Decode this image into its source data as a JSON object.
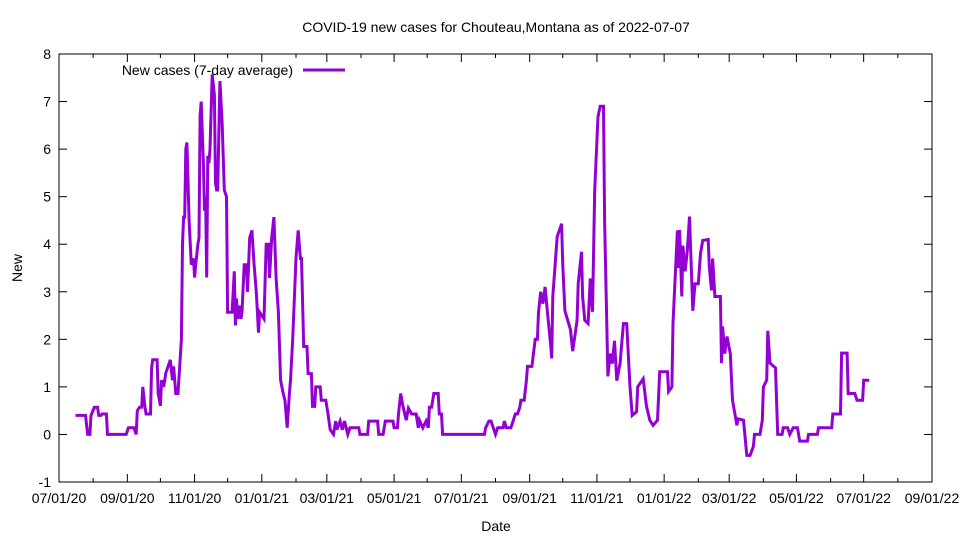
{
  "chart_data": {
    "type": "line",
    "title": "COVID-19 new cases for Chouteau,Montana as of 2022-07-07",
    "xlabel": "Date",
    "ylabel": "New",
    "x_units": "days since 07/01/20",
    "xlim": [
      0,
      792
    ],
    "ylim": [
      -1,
      8
    ],
    "yticks": [
      -1,
      0,
      1,
      2,
      3,
      4,
      5,
      6,
      7,
      8
    ],
    "xticks": [
      {
        "day": 0,
        "label": "07/01/20"
      },
      {
        "day": 62,
        "label": "09/01/20"
      },
      {
        "day": 123,
        "label": "11/01/20"
      },
      {
        "day": 184,
        "label": "01/01/21"
      },
      {
        "day": 243,
        "label": "03/01/21"
      },
      {
        "day": 304,
        "label": "05/01/21"
      },
      {
        "day": 365,
        "label": "07/01/21"
      },
      {
        "day": 427,
        "label": "09/01/21"
      },
      {
        "day": 488,
        "label": "11/01/21"
      },
      {
        "day": 549,
        "label": "01/01/22"
      },
      {
        "day": 608,
        "label": "03/01/22"
      },
      {
        "day": 669,
        "label": "05/01/22"
      },
      {
        "day": 730,
        "label": "07/01/22"
      },
      {
        "day": 792,
        "label": "09/01/22"
      }
    ],
    "minor_xticks": [
      31,
      92,
      153,
      215,
      274,
      334,
      396,
      457,
      518,
      580,
      639,
      700,
      761
    ],
    "grid": false,
    "legend": {
      "position": "top-left",
      "entries": [
        "New cases (7-day average)"
      ]
    },
    "series": [
      {
        "name": "New cases (7-day average)",
        "color": "#9400d3",
        "points": [
          [
            15,
            0.4
          ],
          [
            24,
            0.4
          ],
          [
            26,
            0
          ],
          [
            28,
            0
          ],
          [
            29,
            0.4
          ],
          [
            32,
            0.57
          ],
          [
            35,
            0.57
          ],
          [
            36,
            0.4
          ],
          [
            38,
            0.4
          ],
          [
            39,
            0.43
          ],
          [
            43,
            0.43
          ],
          [
            44,
            0
          ],
          [
            61,
            0
          ],
          [
            63,
            0.14
          ],
          [
            68,
            0.14
          ],
          [
            70,
            0
          ],
          [
            71,
            0.5
          ],
          [
            73,
            0.57
          ],
          [
            75,
            0.57
          ],
          [
            76,
            1.0
          ],
          [
            78,
            0.57
          ],
          [
            79,
            0.43
          ],
          [
            83,
            0.43
          ],
          [
            84,
            1.4
          ],
          [
            85,
            1.57
          ],
          [
            89,
            1.57
          ],
          [
            90,
            0.86
          ],
          [
            92,
            0.6
          ],
          [
            93,
            1.14
          ],
          [
            95,
            1.0
          ],
          [
            97,
            1.3
          ],
          [
            99,
            1.43
          ],
          [
            101,
            1.57
          ],
          [
            103,
            1.14
          ],
          [
            104,
            1.43
          ],
          [
            106,
            0.86
          ],
          [
            108,
            0.86
          ],
          [
            111,
            2.0
          ],
          [
            112,
            4.0
          ],
          [
            113,
            4.57
          ],
          [
            114,
            4.57
          ],
          [
            115,
            6.0
          ],
          [
            116,
            6.14
          ],
          [
            118,
            4.5
          ],
          [
            120,
            3.57
          ],
          [
            122,
            3.7
          ],
          [
            123,
            3.3
          ],
          [
            124,
            3.57
          ],
          [
            126,
            4.0
          ],
          [
            127,
            4.14
          ],
          [
            128,
            6.7
          ],
          [
            129,
            7.0
          ],
          [
            131,
            5.7
          ],
          [
            132,
            4.7
          ],
          [
            133,
            5.0
          ],
          [
            134,
            3.3
          ],
          [
            135,
            5.86
          ],
          [
            136,
            5.7
          ],
          [
            137,
            6.0
          ],
          [
            139,
            7.57
          ],
          [
            141,
            7.14
          ],
          [
            142,
            5.29
          ],
          [
            143,
            5.14
          ],
          [
            144,
            5.14
          ],
          [
            146,
            7.43
          ],
          [
            148,
            6.57
          ],
          [
            150,
            5.14
          ],
          [
            152,
            5.0
          ],
          [
            153,
            2.57
          ],
          [
            157,
            2.57
          ],
          [
            159,
            3.43
          ],
          [
            160,
            2.29
          ],
          [
            161,
            2.86
          ],
          [
            162,
            2.43
          ],
          [
            164,
            2.71
          ],
          [
            165,
            2.43
          ],
          [
            166,
            2.57
          ],
          [
            168,
            3.57
          ],
          [
            170,
            3.57
          ],
          [
            171,
            3.0
          ],
          [
            173,
            4.14
          ],
          [
            175,
            4.29
          ],
          [
            177,
            3.57
          ],
          [
            179,
            3.0
          ],
          [
            181,
            2.14
          ],
          [
            182,
            2.57
          ],
          [
            184,
            2.5
          ],
          [
            186,
            2.43
          ],
          [
            188,
            4.0
          ],
          [
            190,
            4.0
          ],
          [
            191,
            3.29
          ],
          [
            193,
            4.14
          ],
          [
            195,
            4.57
          ],
          [
            197,
            3.29
          ],
          [
            199,
            2.57
          ],
          [
            201,
            1.14
          ],
          [
            203,
            0.9
          ],
          [
            205,
            0.71
          ],
          [
            207,
            0.14
          ],
          [
            209,
            0.86
          ],
          [
            210,
            1.14
          ],
          [
            212,
            2.0
          ],
          [
            215,
            3.71
          ],
          [
            217,
            4.29
          ],
          [
            219,
            3.7
          ],
          [
            220,
            3.7
          ],
          [
            222,
            1.85
          ],
          [
            225,
            1.85
          ],
          [
            226,
            1.28
          ],
          [
            229,
            1.28
          ],
          [
            230,
            0.59
          ],
          [
            232,
            0.59
          ],
          [
            233,
            1.0
          ],
          [
            237,
            1.0
          ],
          [
            238,
            0.72
          ],
          [
            242,
            0.72
          ],
          [
            244,
            0.43
          ],
          [
            246,
            0.1
          ],
          [
            249,
            0
          ],
          [
            251,
            0.28
          ],
          [
            252,
            0.1
          ],
          [
            255,
            0.28
          ],
          [
            257,
            0.1
          ],
          [
            259,
            0.28
          ],
          [
            262,
            0
          ],
          [
            264,
            0.14
          ],
          [
            272,
            0.14
          ],
          [
            273,
            0
          ],
          [
            280,
            0
          ],
          [
            281,
            0.28
          ],
          [
            289,
            0.28
          ],
          [
            290,
            0
          ],
          [
            294,
            0
          ],
          [
            296,
            0.28
          ],
          [
            303,
            0.28
          ],
          [
            304,
            0.14
          ],
          [
            307,
            0.14
          ],
          [
            308,
            0.43
          ],
          [
            310,
            0.86
          ],
          [
            312,
            0.6
          ],
          [
            315,
            0.3
          ],
          [
            317,
            0.55
          ],
          [
            320,
            0.43
          ],
          [
            324,
            0.43
          ],
          [
            326,
            0.14
          ],
          [
            327,
            0.3
          ],
          [
            330,
            0.14
          ],
          [
            333,
            0.28
          ],
          [
            335,
            0.14
          ],
          [
            336,
            0.57
          ],
          [
            338,
            0.57
          ],
          [
            340,
            0.86
          ],
          [
            344,
            0.86
          ],
          [
            345,
            0.43
          ],
          [
            347,
            0.43
          ],
          [
            348,
            0
          ],
          [
            386,
            0
          ],
          [
            387,
            0.14
          ],
          [
            390,
            0.28
          ],
          [
            392,
            0.28
          ],
          [
            394,
            0.14
          ],
          [
            396,
            0
          ],
          [
            398,
            0.14
          ],
          [
            403,
            0.14
          ],
          [
            404,
            0.28
          ],
          [
            406,
            0.14
          ],
          [
            410,
            0.14
          ],
          [
            412,
            0.28
          ],
          [
            414,
            0.43
          ],
          [
            416,
            0.43
          ],
          [
            418,
            0.57
          ],
          [
            419,
            0.72
          ],
          [
            422,
            0.72
          ],
          [
            424,
            1.14
          ],
          [
            425,
            1.43
          ],
          [
            429,
            1.43
          ],
          [
            432,
            2.0
          ],
          [
            434,
            2.0
          ],
          [
            435,
            2.57
          ],
          [
            437,
            3.0
          ],
          [
            439,
            2.75
          ],
          [
            441,
            3.1
          ],
          [
            443,
            2.6
          ],
          [
            446,
            1.9
          ],
          [
            447,
            1.6
          ],
          [
            448,
            2.9
          ],
          [
            452,
            4.16
          ],
          [
            456,
            4.43
          ],
          [
            457,
            3.6
          ],
          [
            459,
            2.6
          ],
          [
            464,
            2.2
          ],
          [
            466,
            1.75
          ],
          [
            470,
            2.4
          ],
          [
            471,
            3.17
          ],
          [
            474,
            3.84
          ],
          [
            475,
            2.9
          ],
          [
            477,
            2.4
          ],
          [
            480,
            2.33
          ],
          [
            482,
            3.28
          ],
          [
            484,
            2.58
          ],
          [
            486,
            5.13
          ],
          [
            489,
            6.68
          ],
          [
            491,
            6.9
          ],
          [
            494,
            6.9
          ],
          [
            495,
            4.5
          ],
          [
            498,
            1.22
          ],
          [
            500,
            1.7
          ],
          [
            502,
            1.49
          ],
          [
            504,
            1.97
          ],
          [
            506,
            1.13
          ],
          [
            509,
            1.5
          ],
          [
            512,
            2.33
          ],
          [
            515,
            2.33
          ],
          [
            518,
            1.0
          ],
          [
            520,
            0.4
          ],
          [
            524,
            0.48
          ],
          [
            525,
            1.0
          ],
          [
            530,
            1.17
          ],
          [
            533,
            0.59
          ],
          [
            536,
            0.3
          ],
          [
            539,
            0.19
          ],
          [
            543,
            0.3
          ],
          [
            545,
            1.32
          ],
          [
            552,
            1.32
          ],
          [
            553,
            0.9
          ],
          [
            556,
            1.0
          ],
          [
            557,
            2.33
          ],
          [
            561,
            4.29
          ],
          [
            562,
            3.5
          ],
          [
            563,
            4.3
          ],
          [
            565,
            2.9
          ],
          [
            566,
            3.97
          ],
          [
            568,
            3.43
          ],
          [
            570,
            3.86
          ],
          [
            572,
            4.58
          ],
          [
            575,
            2.6
          ],
          [
            577,
            3.17
          ],
          [
            580,
            3.17
          ],
          [
            582,
            3.8
          ],
          [
            584,
            4.08
          ],
          [
            589,
            4.1
          ],
          [
            590,
            3.53
          ],
          [
            592,
            3.03
          ],
          [
            593,
            3.7
          ],
          [
            595,
            2.9
          ],
          [
            600,
            2.9
          ],
          [
            601,
            1.5
          ],
          [
            602,
            2.27
          ],
          [
            604,
            1.7
          ],
          [
            606,
            2.06
          ],
          [
            609,
            1.7
          ],
          [
            611,
            0.72
          ],
          [
            612,
            0.59
          ],
          [
            615,
            0.19
          ],
          [
            616,
            0.33
          ],
          [
            621,
            0.3
          ],
          [
            624,
            -0.44
          ],
          [
            627,
            -0.44
          ],
          [
            630,
            -0.25
          ],
          [
            631,
            0
          ],
          [
            636,
            0
          ],
          [
            638,
            0.3
          ],
          [
            639,
            1.0
          ],
          [
            642,
            1.14
          ],
          [
            643,
            2.18
          ],
          [
            645,
            1.5
          ],
          [
            650,
            1.4
          ],
          [
            652,
            0
          ],
          [
            656,
            0
          ],
          [
            657,
            0.14
          ],
          [
            661,
            0.14
          ],
          [
            663,
            0
          ],
          [
            666,
            0.14
          ],
          [
            670,
            0.14
          ],
          [
            672,
            -0.14
          ],
          [
            679,
            -0.14
          ],
          [
            680,
            0
          ],
          [
            688,
            0
          ],
          [
            689,
            0.14
          ],
          [
            701,
            0.14
          ],
          [
            702,
            0.43
          ],
          [
            709,
            0.43
          ],
          [
            710,
            1.71
          ],
          [
            715,
            1.71
          ],
          [
            716,
            0.86
          ],
          [
            722,
            0.86
          ],
          [
            724,
            0.72
          ],
          [
            729,
            0.72
          ],
          [
            730,
            1.14
          ],
          [
            735,
            1.14
          ]
        ]
      }
    ]
  }
}
